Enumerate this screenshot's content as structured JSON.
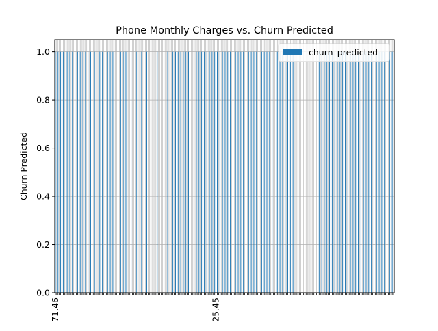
{
  "chart_data": {
    "type": "bar",
    "title": "Phone Monthly Charges vs. Churn Predicted",
    "xlabel": "",
    "ylabel": "Churn Predicted",
    "ylim": [
      0,
      1.05
    ],
    "yticks": [
      "0.0",
      "0.2",
      "0.4",
      "0.6",
      "0.8",
      "1.0"
    ],
    "legend": {
      "position": "top-right",
      "entries": [
        "churn_predicted"
      ]
    },
    "grid": true,
    "series_color": "#1f77b4",
    "x_tick_labels_visible": [
      "71.46",
      "",
      "",
      "",
      "",
      "",
      "",
      "",
      "",
      "",
      "",
      "",
      "",
      "",
      "",
      "",
      "",
      "",
      "",
      "",
      "",
      "",
      "",
      "",
      "",
      "",
      "",
      "",
      "",
      "",
      "",
      "",
      "",
      "",
      "",
      "",
      "",
      "",
      "",
      "",
      "",
      "",
      "",
      "",
      "",
      "",
      "",
      "",
      "",
      "",
      "",
      "",
      "",
      "",
      "",
      "",
      "",
      "",
      "",
      "",
      "",
      "",
      "",
      "",
      "",
      "",
      "",
      "",
      "",
      "",
      "",
      "",
      "",
      "",
      "",
      "",
      "",
      "",
      "",
      "",
      "",
      "",
      "",
      "",
      "",
      "",
      "",
      "",
      "",
      "",
      "",
      "",
      "",
      "",
      "",
      "",
      "",
      "",
      "",
      "",
      "",
      "",
      "",
      "",
      "",
      "",
      "",
      "",
      "",
      "",
      "",
      "",
      "",
      "",
      "",
      "",
      "",
      "",
      "",
      "",
      "",
      "",
      "",
      "25.45"
    ],
    "series": [
      {
        "name": "churn_predicted",
        "values": [
          1,
          0,
          1,
          0,
          1,
          0,
          1,
          0,
          0,
          1,
          0,
          1,
          0,
          1,
          0,
          1,
          0,
          1,
          0,
          1,
          0,
          1,
          0,
          1,
          0,
          1,
          0,
          1,
          0,
          0,
          1,
          0,
          0,
          0,
          1,
          0,
          1,
          0,
          1,
          0,
          1,
          0,
          1,
          0,
          1,
          0,
          0,
          0,
          0,
          0,
          1,
          0,
          1,
          0,
          1,
          0,
          0,
          0,
          1,
          0,
          0,
          0,
          1,
          0,
          0,
          0,
          1,
          0,
          0,
          0,
          1,
          0,
          0,
          0,
          0,
          0,
          0,
          0,
          1,
          0,
          0,
          0,
          0,
          0,
          0,
          0,
          1,
          0,
          0,
          0,
          1,
          0,
          1,
          0,
          1,
          0,
          1,
          0,
          1,
          0,
          1,
          0,
          1,
          0,
          0,
          0,
          0,
          0,
          1,
          0,
          1,
          0,
          1,
          0,
          1,
          0,
          1,
          0,
          1,
          0,
          1,
          0,
          1,
          0,
          1,
          0,
          1,
          0,
          1,
          0,
          1,
          0,
          1,
          0,
          1,
          0,
          0,
          0,
          1,
          0,
          1,
          0,
          1,
          0,
          1,
          0,
          1,
          0,
          1,
          0,
          1,
          0,
          1,
          0,
          1,
          0,
          1,
          0,
          1,
          0,
          1,
          0,
          1,
          0,
          1,
          0,
          1,
          0,
          0,
          0,
          1,
          0,
          1,
          0,
          1,
          0,
          1,
          0,
          1,
          0,
          1,
          0,
          1,
          0,
          0,
          0,
          0,
          0,
          0,
          0,
          0,
          0,
          0,
          0,
          0,
          0,
          0,
          0,
          0,
          0,
          0,
          0,
          1,
          0,
          1,
          0,
          1,
          0,
          1,
          0,
          1,
          0,
          1,
          0,
          1,
          0,
          1,
          0,
          1,
          0,
          1,
          0,
          1,
          0,
          1,
          0,
          1,
          0,
          1,
          0,
          1,
          0,
          1,
          0,
          1,
          0,
          1,
          0,
          1,
          0,
          1,
          0,
          1,
          0,
          1,
          0,
          1,
          0,
          1,
          0,
          1,
          0,
          1,
          0,
          1,
          0,
          1,
          0,
          1,
          0
        ]
      }
    ]
  }
}
